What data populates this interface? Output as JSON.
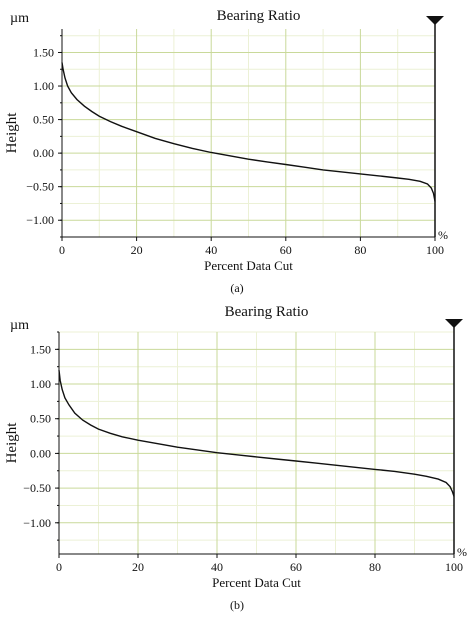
{
  "chart_data": [
    {
      "type": "line",
      "title": "Bearing Ratio",
      "xlabel": "Percent Data Cut",
      "ylabel": "Height",
      "y_unit": "µm",
      "x_unit": "%",
      "caption": "(a)",
      "xlim": [
        0,
        100
      ],
      "ylim": [
        -1.25,
        1.85
      ],
      "x_ticks": [
        0,
        20,
        40,
        60,
        80,
        100
      ],
      "x_tick_labels": [
        "0",
        "20",
        "40",
        "60",
        "80",
        "100"
      ],
      "y_ticks": [
        1.5,
        1.0,
        0.5,
        0.0,
        -0.5,
        -1.0
      ],
      "y_tick_labels": [
        "1.50",
        "1.00",
        "0.50",
        "0.00",
        "−0.50",
        "−1.00"
      ],
      "grid": true,
      "series": [
        {
          "x": [
            0,
            0.3,
            0.8,
            1.5,
            2.5,
            4,
            6,
            8,
            10,
            13,
            16,
            20,
            25,
            30,
            35,
            40,
            45,
            50,
            55,
            60,
            65,
            70,
            75,
            80,
            85,
            90,
            93,
            96,
            98,
            99,
            99.6,
            100
          ],
          "y": [
            1.35,
            1.25,
            1.12,
            1.0,
            0.9,
            0.8,
            0.7,
            0.62,
            0.55,
            0.47,
            0.4,
            0.32,
            0.22,
            0.14,
            0.07,
            0.01,
            -0.04,
            -0.09,
            -0.13,
            -0.17,
            -0.21,
            -0.25,
            -0.28,
            -0.31,
            -0.34,
            -0.37,
            -0.39,
            -0.42,
            -0.46,
            -0.52,
            -0.6,
            -0.72
          ]
        }
      ]
    },
    {
      "type": "line",
      "title": "Bearing Ratio",
      "xlabel": "Percent Data Cut",
      "ylabel": "Height",
      "y_unit": "µm",
      "x_unit": "%",
      "caption": "(b)",
      "xlim": [
        0,
        100
      ],
      "ylim": [
        -1.45,
        1.75
      ],
      "x_ticks": [
        0,
        20,
        40,
        60,
        80,
        100
      ],
      "x_tick_labels": [
        "0",
        "20",
        "40",
        "60",
        "80",
        "100"
      ],
      "y_ticks": [
        1.5,
        1.0,
        0.5,
        0.0,
        -0.5,
        -1.0
      ],
      "y_tick_labels": [
        "1.50",
        "1.00",
        "0.50",
        "0.00",
        "−0.50",
        "−1.00"
      ],
      "grid": true,
      "series": [
        {
          "x": [
            0,
            0.3,
            0.8,
            1.5,
            2.5,
            4,
            6,
            8,
            10,
            13,
            16,
            20,
            25,
            30,
            35,
            40,
            45,
            50,
            55,
            60,
            65,
            70,
            75,
            80,
            85,
            90,
            93,
            96,
            98,
            99,
            99.6,
            100
          ],
          "y": [
            1.2,
            1.05,
            0.92,
            0.8,
            0.7,
            0.58,
            0.48,
            0.41,
            0.35,
            0.29,
            0.24,
            0.19,
            0.14,
            0.09,
            0.05,
            0.01,
            -0.02,
            -0.05,
            -0.08,
            -0.11,
            -0.14,
            -0.17,
            -0.2,
            -0.23,
            -0.26,
            -0.3,
            -0.33,
            -0.37,
            -0.42,
            -0.48,
            -0.55,
            -0.62
          ]
        }
      ]
    }
  ],
  "colors": {
    "line": "#111111",
    "grid_major": "#c9d99a",
    "grid_minor": "#ecf1d6",
    "axis": "#111111"
  }
}
